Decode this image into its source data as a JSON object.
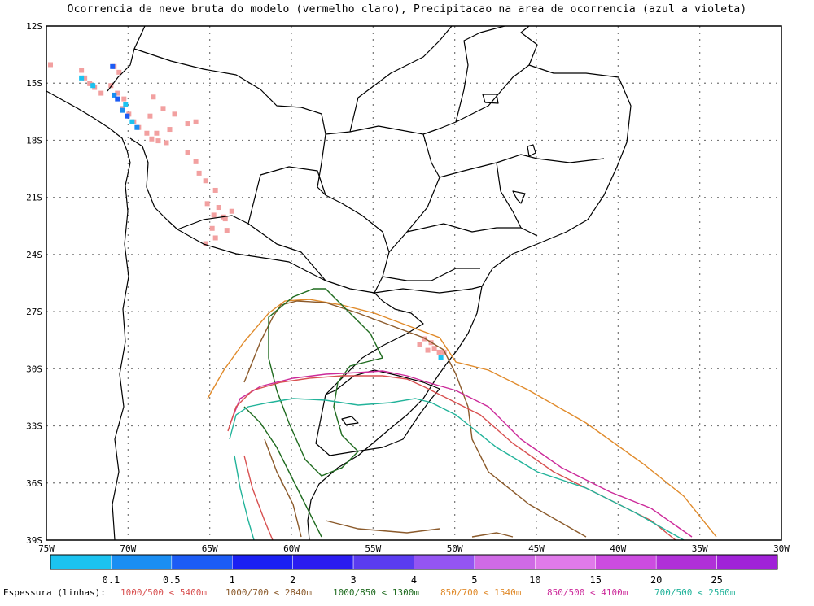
{
  "title": "Ocorrencia de neve bruta do modelo (vermelho claro), Precipitacao na area de ocorrencia (azul a violeta)",
  "map": {
    "lon_range": [
      -75,
      -30
    ],
    "lat_range": [
      -39,
      -12
    ],
    "grid_lines": true,
    "lon_ticks": [
      "75W",
      "70W",
      "65W",
      "60W",
      "55W",
      "50W",
      "45W",
      "40W",
      "35W",
      "30W"
    ],
    "lat_ticks": [
      "12S",
      "15S",
      "18S",
      "21S",
      "24S",
      "27S",
      "30S",
      "33S",
      "36S",
      "39S"
    ]
  },
  "colorbar": {
    "colors": [
      "#1cc3f0",
      "#1a8ef2",
      "#1c5cf5",
      "#1a20f2",
      "#2a1cf0",
      "#5a3cf0",
      "#9455f2",
      "#cf6ae5",
      "#e07aea",
      "#cc4ce0",
      "#b030d8",
      "#a022d8"
    ],
    "labels": [
      "0.1",
      "0.5",
      "1",
      "2",
      "3",
      "4",
      "5",
      "10",
      "15",
      "20",
      "25"
    ]
  },
  "legend": {
    "title": "Espessura (linhas):",
    "items": [
      {
        "label": "1000/500 < 5400m",
        "color": "#d85050"
      },
      {
        "label": "1000/700 < 2840m",
        "color": "#8b5a2b"
      },
      {
        "label": "1000/850 < 1300m",
        "color": "#1f6b1f"
      },
      {
        "label": "850/700 < 1540m",
        "color": "#e08a2a"
      },
      {
        "label": "850/500 < 4100m",
        "color": "#cc2a9a"
      },
      {
        "label": "700/500 < 2560m",
        "color": "#22b39a"
      }
    ]
  },
  "snow_color": "#f2a0a0",
  "precip_colors": [
    "#1cc3f0",
    "#1a8ef2",
    "#1c5cf5"
  ]
}
